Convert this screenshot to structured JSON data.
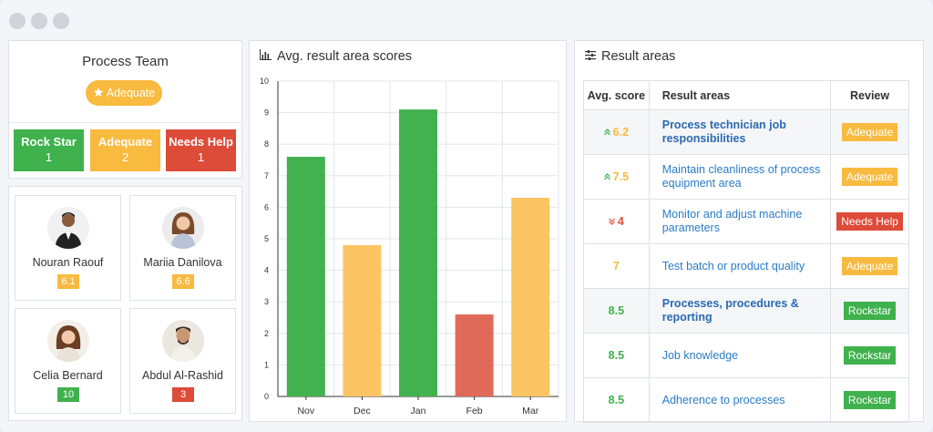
{
  "colors": {
    "green": "#3fb14d",
    "orange": "#f8ba3f",
    "red": "#dd4b39",
    "bar_green": "#42b14f",
    "bar_orange": "#fdc463",
    "bar_red": "#e06a5a"
  },
  "team": {
    "title": "Process Team",
    "rating_icon": "star-icon",
    "rating": "Adequate",
    "statuses": [
      {
        "label": "Rock Star",
        "count": "1"
      },
      {
        "label": "Adequate",
        "count": "2"
      },
      {
        "label": "Needs Help",
        "count": "1"
      }
    ]
  },
  "members": [
    {
      "name": "Nouran Raouf",
      "score": "6.1",
      "level": "orange"
    },
    {
      "name": "Mariia Danilova",
      "score": "6.6",
      "level": "orange"
    },
    {
      "name": "Celia Bernard",
      "score": "10",
      "level": "green"
    },
    {
      "name": "Abdul Al-Rashid",
      "score": "3",
      "level": "red"
    }
  ],
  "chart": {
    "title": "Avg. result area scores",
    "icon": "bar-chart-icon"
  },
  "chart_data": {
    "type": "bar",
    "categories": [
      "Nov",
      "Dec",
      "Jan",
      "Feb",
      "Mar"
    ],
    "values": [
      7.6,
      4.8,
      9.1,
      2.6,
      6.3
    ],
    "bar_colors": [
      "green",
      "orange",
      "green",
      "red",
      "orange"
    ],
    "ylim": [
      0,
      10
    ],
    "yticks": [
      "0",
      "1",
      "2",
      "3",
      "4",
      "5",
      "6",
      "7",
      "8",
      "9",
      "10"
    ],
    "grid": true,
    "xlabel": "",
    "ylabel": "",
    "title": ""
  },
  "results": {
    "title": "Result areas",
    "icon": "sliders-icon",
    "headers": {
      "score": "Avg. score",
      "area": "Result areas",
      "review": "Review"
    },
    "rows": [
      {
        "trend": "up",
        "score": "6.2",
        "area": "Process technician job responsibilities",
        "bold": true,
        "review": "Adequate",
        "level": "orange",
        "shade": true
      },
      {
        "trend": "up",
        "score": "7.5",
        "area": "Maintain cleanliness of process equipment area",
        "bold": false,
        "review": "Adequate",
        "level": "orange",
        "shade": false
      },
      {
        "trend": "down",
        "score": "4",
        "area": "Monitor and adjust machine parameters",
        "bold": false,
        "review": "Needs Help",
        "level": "red",
        "shade": false
      },
      {
        "trend": "",
        "score": "7",
        "area": "Test batch or product quality",
        "bold": false,
        "review": "Adequate",
        "level": "orange",
        "shade": false
      },
      {
        "trend": "",
        "score": "8.5",
        "area": "Processes, procedures & reporting",
        "bold": true,
        "review": "Rockstar",
        "level": "green",
        "shade": true
      },
      {
        "trend": "",
        "score": "8.5",
        "area": "Job knowledge",
        "bold": false,
        "review": "Rockstar",
        "level": "green",
        "shade": false
      },
      {
        "trend": "",
        "score": "8.5",
        "area": "Adherence to processes",
        "bold": false,
        "review": "Rockstar",
        "level": "green",
        "shade": false
      }
    ]
  }
}
